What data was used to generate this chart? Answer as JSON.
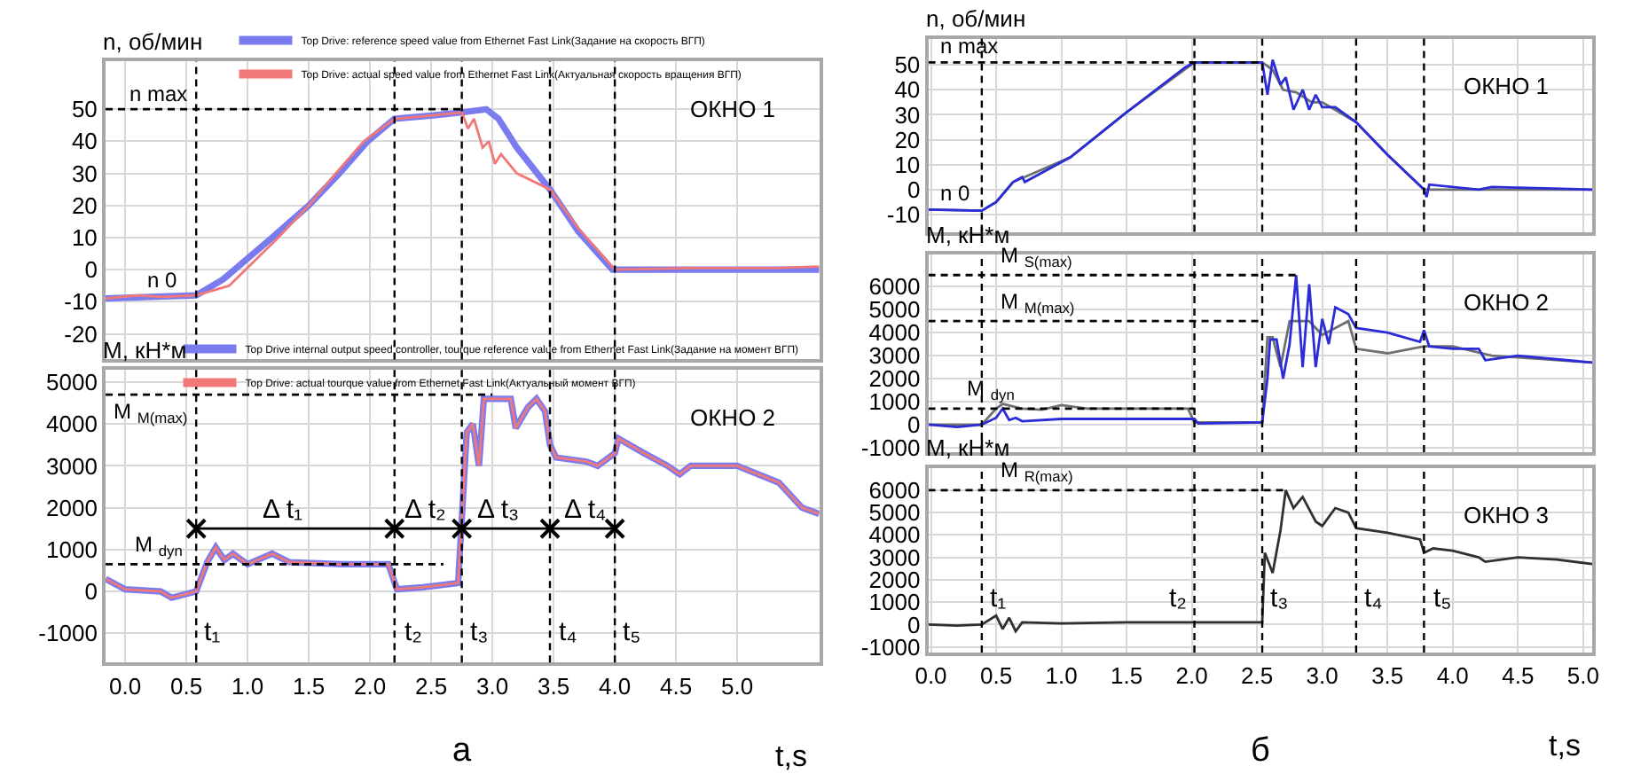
{
  "chart_data": [
    {
      "type": "line",
      "ylabel": "n, об/мин",
      "xlim": [
        -0.16,
        5.67
      ],
      "ylim": [
        -28,
        65
      ],
      "xticks": [
        0,
        0.5,
        1,
        1.5,
        2,
        2.5,
        3,
        3.5,
        4,
        4.5,
        5
      ],
      "yticks": [
        -20,
        -10,
        0,
        10,
        20,
        30,
        40,
        50
      ],
      "grid": true,
      "tick_labels": "y",
      "legend": "top",
      "series": [
        {
          "name": "Top Drive: reference speed value from Ethernet Fast Link(Задание на скорость ВГП)",
          "color": "#7b7bf0",
          "x": [
            -0.16,
            0.2,
            0.58,
            0.8,
            1.2,
            1.5,
            1.75,
            1.98,
            2.2,
            2.5,
            2.75,
            2.95,
            3.05,
            3.2,
            3.47,
            3.7,
            3.98,
            4.5,
            5.0,
            5.67
          ],
          "values": [
            -9,
            -8.5,
            -8,
            -3,
            10,
            20,
            30,
            40,
            47,
            48,
            49,
            50,
            47,
            38,
            25,
            12,
            0,
            0,
            0,
            0
          ]
        },
        {
          "name": "Top Drive: actual speed value from Ethernet Fast Link(Актуальная скорость вращения ВГП)",
          "color": "#f07878",
          "x": [
            -0.16,
            0.1,
            0.3,
            0.58,
            0.85,
            1.25,
            1.5,
            1.72,
            1.95,
            2.2,
            2.5,
            2.75,
            2.8,
            2.85,
            2.92,
            2.97,
            3.02,
            3.07,
            3.2,
            3.47,
            3.7,
            4.0,
            4.6,
            5.3,
            5.67
          ],
          "values": [
            -9,
            -8,
            -8.5,
            -8,
            -5,
            10,
            20,
            30,
            40,
            47,
            48,
            49,
            44,
            47,
            38,
            40,
            33,
            36,
            30,
            25,
            13,
            0,
            0.5,
            0.5,
            1
          ]
        },
        {
          "color": "#000000",
          "line_style": "dashed",
          "x": [
            -0.16,
            2.75
          ],
          "values": [
            50,
            50
          ]
        }
      ],
      "ref_lines": [
        {
          "axis": "x",
          "value": 0.58,
          "color": "#000000",
          "line_style": "dashed"
        },
        {
          "axis": "x",
          "value": 2.2,
          "color": "#000000",
          "line_style": "dashed"
        },
        {
          "axis": "x",
          "value": 2.75,
          "color": "#000000",
          "line_style": "dashed"
        },
        {
          "axis": "x",
          "value": 3.47,
          "color": "#000000",
          "line_style": "dashed"
        },
        {
          "axis": "x",
          "value": 4.0,
          "color": "#000000",
          "line_style": "dashed"
        }
      ],
      "annotations": [
        "ОКНО 1",
        {
          "text": "n max",
          "x": 0.0,
          "y": 50
        },
        {
          "text": "n 0",
          "x": 0.15,
          "y": -8
        }
      ]
    },
    {
      "type": "line",
      "ylabel": "М, кН*м",
      "xlabel": "t,s",
      "xlim": [
        -0.16,
        5.67
      ],
      "ylim": [
        -1700,
        5300
      ],
      "xticks": [
        {
          "value": 0,
          "label": "0.0"
        },
        0.5,
        {
          "value": 1,
          "label": "1.0"
        },
        1.5,
        {
          "value": 2,
          "label": "2.0"
        },
        2.5,
        {
          "value": 3,
          "label": "3.0"
        },
        3.5,
        {
          "value": 4,
          "label": "4.0"
        },
        4.5,
        {
          "value": 5,
          "label": "5.0"
        }
      ],
      "yticks": [
        -1000,
        0,
        1000,
        2000,
        3000,
        4000,
        5000
      ],
      "grid": true,
      "legend": "top",
      "series": [
        {
          "name": "Top Drive internal output speed controller, tourque reference value from Ethernet Fast Link(Задание на момент ВГП)",
          "color": "#7b7bf0",
          "x": [
            -0.16,
            0.0,
            0.29,
            0.38,
            0.58,
            0.67,
            0.74,
            0.81,
            0.88,
            1.0,
            1.2,
            1.34,
            1.77,
            2.15,
            2.22,
            2.43,
            2.72,
            2.79,
            2.84,
            2.89,
            2.93,
            3.15,
            3.19,
            3.29,
            3.36,
            3.43,
            3.47,
            3.52,
            3.77,
            3.86,
            4.0,
            4.03,
            4.24,
            4.43,
            4.53,
            4.62,
            5.0,
            5.17,
            5.34,
            5.53,
            5.67
          ],
          "values": [
            300,
            50,
            0,
            -150,
            0,
            700,
            1050,
            750,
            900,
            650,
            900,
            700,
            650,
            650,
            50,
            100,
            200,
            3800,
            4000,
            3000,
            4600,
            4600,
            3900,
            4400,
            4600,
            4300,
            3500,
            3200,
            3100,
            3000,
            3300,
            3650,
            3300,
            3000,
            2800,
            3000,
            3000,
            2800,
            2600,
            2000,
            1850
          ]
        },
        {
          "name": "Top Drive: actual tourque value from Ethernet Fast Link(Актуальный момент ВГП)",
          "color": "#f07878",
          "x": [
            -0.16,
            0.0,
            0.29,
            0.38,
            0.58,
            0.67,
            0.74,
            0.81,
            0.88,
            1.0,
            1.2,
            1.34,
            1.77,
            2.15,
            2.22,
            2.43,
            2.72,
            2.79,
            2.84,
            2.89,
            2.93,
            3.15,
            3.19,
            3.29,
            3.36,
            3.43,
            3.47,
            3.52,
            3.77,
            3.86,
            4.0,
            4.03,
            4.24,
            4.43,
            4.53,
            4.62,
            5.0,
            5.17,
            5.34,
            5.53,
            5.67
          ],
          "values": [
            300,
            50,
            0,
            -150,
            0,
            700,
            1050,
            750,
            900,
            650,
            900,
            700,
            650,
            650,
            50,
            100,
            200,
            3800,
            4000,
            3000,
            4600,
            4600,
            3900,
            4400,
            4600,
            4300,
            3500,
            3200,
            3100,
            3000,
            3300,
            3650,
            3300,
            3000,
            2800,
            3000,
            3000,
            2800,
            2600,
            2000,
            1850
          ]
        },
        {
          "color": "#000000",
          "line_style": "dashed",
          "x": [
            -0.16,
            2.6
          ],
          "values": [
            650,
            650
          ]
        },
        {
          "color": "#000000",
          "line_style": "dashed",
          "x": [
            -0.16,
            3.0
          ],
          "values": [
            4700,
            4700
          ]
        },
        {
          "color": "#000000",
          "line_style": "solid",
          "marker": "cross",
          "x": [
            0.58,
            2.2,
            2.75,
            3.47,
            4.0
          ],
          "values": [
            1500,
            1500,
            1500,
            1500,
            1500
          ]
        }
      ],
      "ref_lines": [
        {
          "axis": "x",
          "value": 0.58,
          "color": "#000000",
          "line_style": "dashed"
        },
        {
          "axis": "x",
          "value": 2.2,
          "color": "#000000",
          "line_style": "dashed"
        },
        {
          "axis": "x",
          "value": 2.75,
          "color": "#000000",
          "line_style": "dashed"
        },
        {
          "axis": "x",
          "value": 3.47,
          "color": "#000000",
          "line_style": "dashed"
        },
        {
          "axis": "x",
          "value": 4.0,
          "color": "#000000",
          "line_style": "dashed"
        }
      ],
      "annotations": [
        "ОКНО 2",
        "а",
        {
          "text": "M $_{dyn}$",
          "x": 0.05,
          "y": 650
        },
        {
          "text": "M $_{M(max)}$",
          "x": -0.12,
          "y": 4700
        },
        {
          "text": "Δ t₁",
          "x": 1.1,
          "y": 1500
        },
        {
          "text": "Δ t₂",
          "x": 2.25,
          "y": 1500
        },
        {
          "text": "Δ t₃",
          "x": 2.85,
          "y": 1500
        },
        {
          "text": "Δ t₄",
          "x": 3.55,
          "y": 1500
        },
        {
          "text": "t₁",
          "x": 0.62,
          "y": -1400
        },
        {
          "text": "t₂",
          "x": 2.25,
          "y": -1400
        },
        {
          "text": "t₃",
          "x": 2.79,
          "y": -1400
        },
        {
          "text": "t₄",
          "x": 3.51,
          "y": -1400
        },
        {
          "text": "t₅",
          "x": 4.04,
          "y": -1400
        }
      ]
    },
    {
      "type": "line",
      "ylabel": "n, об/мин",
      "xlim": [
        -0.02,
        5.07
      ],
      "ylim": [
        -17,
        60.5
      ],
      "xticks": [
        0,
        0.5,
        1,
        1.5,
        2,
        2.5,
        3,
        3.5,
        4,
        4.5,
        5
      ],
      "yticks": [
        -10,
        0,
        10,
        20,
        30,
        40,
        50
      ],
      "grid": true,
      "tick_labels": "y",
      "series": [
        {
          "color": "#707070",
          "x": [
            -0.02,
            0.39,
            0.5,
            0.63,
            1.07,
            1.5,
            2.02,
            2.54,
            2.62,
            2.7,
            2.8,
            2.92,
            3.0,
            3.26,
            3.5,
            3.78,
            4.5,
            5.07
          ],
          "values": [
            -8,
            -8.5,
            -5,
            3,
            13,
            31,
            51,
            51,
            48,
            40,
            39,
            35,
            35,
            27,
            14,
            0,
            0,
            0
          ]
        },
        {
          "color": "#2b2bd8",
          "x": [
            -0.02,
            0.39,
            0.5,
            0.63,
            0.7,
            0.72,
            1.07,
            1.5,
            1.95,
            2.02,
            2.54,
            2.58,
            2.62,
            2.68,
            2.72,
            2.78,
            2.85,
            2.9,
            2.95,
            3.0,
            3.1,
            3.26,
            3.5,
            3.78,
            3.8,
            3.82,
            4.2,
            4.3,
            5.07
          ],
          "values": [
            -8,
            -8.5,
            -5,
            3,
            5,
            3,
            13,
            31,
            49,
            51,
            51,
            38,
            52,
            42,
            45,
            32,
            40,
            32,
            38,
            33,
            33,
            27,
            14,
            0,
            -3,
            2,
            0,
            1,
            0
          ]
        },
        {
          "color": "#000000",
          "line_style": "dashed",
          "x": [
            -0.02,
            2.54
          ],
          "values": [
            51,
            51
          ]
        }
      ],
      "ref_lines": [
        {
          "axis": "x",
          "value": 0.39,
          "color": "#000000",
          "line_style": "dashed"
        },
        {
          "axis": "x",
          "value": 2.02,
          "color": "#000000",
          "line_style": "dashed"
        },
        {
          "axis": "x",
          "value": 2.54,
          "color": "#000000",
          "line_style": "dashed"
        },
        {
          "axis": "x",
          "value": 3.26,
          "color": "#000000",
          "line_style": "dashed"
        },
        {
          "axis": "x",
          "value": 3.78,
          "color": "#000000",
          "line_style": "dashed"
        }
      ],
      "annotations": [
        "ОКНО 1",
        {
          "text": "n max",
          "x": 0.05,
          "y": 51
        },
        {
          "text": "n 0",
          "x": 0.05,
          "y": -8
        }
      ]
    },
    {
      "type": "line",
      "ylabel": "М, кН*м",
      "xlim": [
        -0.02,
        5.07
      ],
      "ylim": [
        -1200,
        7400
      ],
      "xticks": [
        0,
        0.5,
        1,
        1.5,
        2,
        2.5,
        3,
        3.5,
        4,
        4.5,
        5
      ],
      "yticks": [
        -1000,
        0,
        1000,
        2000,
        3000,
        4000,
        5000,
        6000
      ],
      "grid": true,
      "tick_labels": "y",
      "series": [
        {
          "color": "#707070",
          "x": [
            -0.02,
            0.39,
            0.5,
            0.55,
            0.7,
            0.85,
            1.0,
            1.2,
            1.97,
            2.02,
            2.54,
            2.58,
            2.62,
            2.68,
            2.75,
            2.9,
            3.0,
            3.1,
            3.2,
            3.26,
            3.5,
            3.78,
            4.0,
            4.3,
            5.07
          ],
          "values": [
            0,
            0,
            700,
            900,
            700,
            650,
            850,
            700,
            700,
            100,
            100,
            3800,
            3800,
            2500,
            4500,
            4500,
            3900,
            4200,
            4500,
            3300,
            3100,
            3400,
            3400,
            3000,
            2700
          ]
        },
        {
          "color": "#2b2bd8",
          "x": [
            -0.02,
            0.2,
            0.39,
            0.5,
            0.55,
            0.6,
            0.65,
            0.7,
            1.0,
            2.02,
            2.05,
            2.54,
            2.58,
            2.6,
            2.65,
            2.7,
            2.75,
            2.8,
            2.85,
            2.9,
            2.95,
            3.0,
            3.05,
            3.1,
            3.2,
            3.26,
            3.5,
            3.75,
            3.78,
            3.82,
            4.0,
            4.2,
            4.25,
            4.5,
            5.07
          ],
          "values": [
            0,
            -100,
            0,
            300,
            700,
            200,
            300,
            150,
            250,
            250,
            50,
            100,
            2000,
            3700,
            3700,
            2000,
            3500,
            6500,
            2500,
            6100,
            2500,
            4600,
            3500,
            5100,
            4800,
            4200,
            4000,
            3600,
            4100,
            3400,
            3300,
            3300,
            2800,
            3000,
            2700
          ]
        },
        {
          "color": "#000000",
          "line_style": "dashed",
          "x": [
            -0.02,
            2.8
          ],
          "values": [
            6500,
            6500
          ]
        },
        {
          "color": "#000000",
          "line_style": "dashed",
          "x": [
            -0.02,
            2.54
          ],
          "values": [
            4500,
            4500
          ]
        },
        {
          "color": "#000000",
          "line_style": "dashed",
          "x": [
            -0.02,
            2.02
          ],
          "values": [
            700,
            700
          ]
        }
      ],
      "ref_lines": [
        {
          "axis": "x",
          "value": 0.39,
          "color": "#000000",
          "line_style": "dashed"
        },
        {
          "axis": "x",
          "value": 2.02,
          "color": "#000000",
          "line_style": "dashed"
        },
        {
          "axis": "x",
          "value": 2.54,
          "color": "#000000",
          "line_style": "dashed"
        },
        {
          "axis": "x",
          "value": 3.26,
          "color": "#000000",
          "line_style": "dashed"
        },
        {
          "axis": "x",
          "value": 3.78,
          "color": "#000000",
          "line_style": "dashed"
        }
      ],
      "annotations": [
        "ОКНО 2",
        {
          "text": "M $_{S(max)}$",
          "x": 0.5,
          "y": 6500
        },
        {
          "text": "M $_{M(max)}$",
          "x": 0.5,
          "y": 4500
        },
        {
          "text": "M $_{dyn}$",
          "x": 0.25,
          "y": 700
        }
      ]
    },
    {
      "type": "line",
      "ylabel": "М, кН*м",
      "xlabel": "t,s",
      "xlim": [
        -0.02,
        5.07
      ],
      "ylim": [
        -1250,
        7000
      ],
      "xticks": [
        {
          "value": 0,
          "label": "0.0"
        },
        0.5,
        {
          "value": 1,
          "label": "1.0"
        },
        1.5,
        {
          "value": 2,
          "label": "2.0"
        },
        2.5,
        {
          "value": 3,
          "label": "3.0"
        },
        3.5,
        {
          "value": 4,
          "label": "4.0"
        },
        4.5,
        {
          "value": 5,
          "label": "5.0"
        }
      ],
      "yticks": [
        -1000,
        0,
        1000,
        2000,
        3000,
        4000,
        5000,
        6000
      ],
      "grid": true,
      "series": [
        {
          "color": "#303030",
          "x": [
            -0.02,
            0.2,
            0.39,
            0.5,
            0.55,
            0.6,
            0.65,
            0.7,
            1.0,
            1.5,
            2.0,
            2.54,
            2.56,
            2.62,
            2.68,
            2.72,
            2.78,
            2.85,
            2.95,
            3.0,
            3.1,
            3.2,
            3.26,
            3.5,
            3.75,
            3.78,
            3.85,
            4.0,
            4.2,
            4.25,
            4.5,
            4.8,
            5.07
          ],
          "values": [
            0,
            -50,
            0,
            400,
            -200,
            300,
            -300,
            100,
            50,
            100,
            100,
            100,
            3200,
            2300,
            4200,
            6000,
            5200,
            5700,
            4600,
            4400,
            5200,
            5000,
            4300,
            4100,
            3800,
            3200,
            3400,
            3300,
            3000,
            2800,
            3000,
            2900,
            2700
          ]
        },
        {
          "color": "#000000",
          "line_style": "dashed",
          "x": [
            -0.02,
            2.72
          ],
          "values": [
            6000,
            6000
          ]
        }
      ],
      "ref_lines": [
        {
          "axis": "x",
          "value": 0.39,
          "color": "#000000",
          "line_style": "dashed"
        },
        {
          "axis": "x",
          "value": 2.02,
          "color": "#000000",
          "line_style": "dashed"
        },
        {
          "axis": "x",
          "value": 2.54,
          "color": "#000000",
          "line_style": "dashed"
        },
        {
          "axis": "x",
          "value": 3.26,
          "color": "#000000",
          "line_style": "dashed"
        },
        {
          "axis": "x",
          "value": 3.78,
          "color": "#000000",
          "line_style": "dashed"
        }
      ],
      "annotations": [
        "ОКНО 3",
        "б",
        {
          "text": "M $_{R(max)}$",
          "x": 0.5,
          "y": 6000
        },
        {
          "text": "t₁",
          "x": 0.42,
          "y": 300
        },
        {
          "text": "t₂",
          "x": 1.8,
          "y": 300
        },
        {
          "text": "t₃",
          "x": 2.58,
          "y": 300
        },
        {
          "text": "t₄",
          "x": 3.3,
          "y": 300
        },
        {
          "text": "t₅",
          "x": 3.82,
          "y": 300
        }
      ]
    }
  ]
}
